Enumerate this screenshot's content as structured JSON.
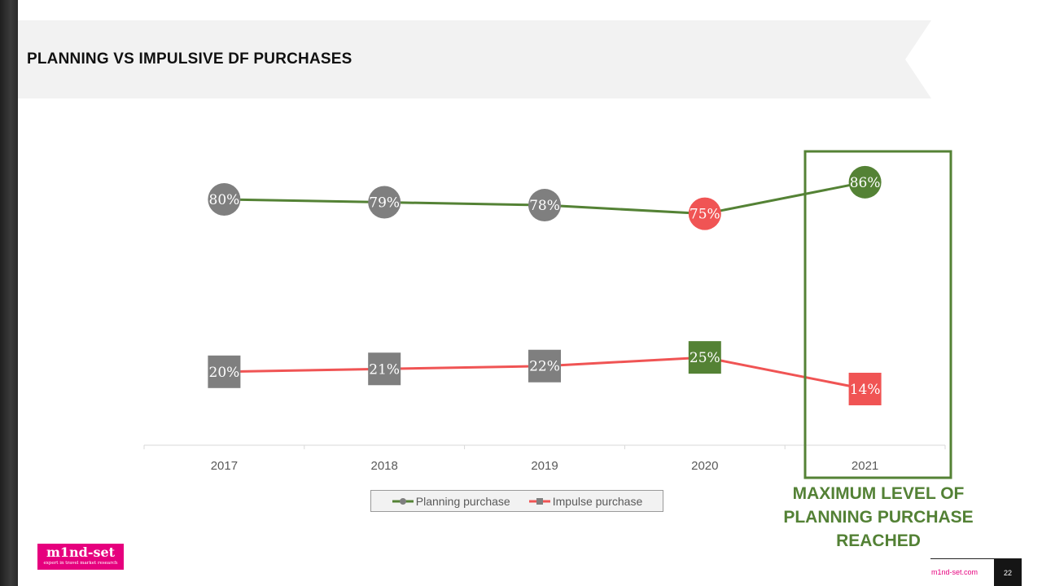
{
  "slide": {
    "title": "PLANNING VS IMPULSIVE DF PURCHASES",
    "callout": "MAXIMUM LEVEL OF PLANNING PURCHASE REACHED",
    "logo_text": "m1nd-set",
    "logo_tagline": "expert in travel market research",
    "website": "m1nd-set.com",
    "page_number": "22"
  },
  "colors": {
    "planning_line": "#548235",
    "impulse_line": "#f05454",
    "neutral_marker": "#7f7f7f",
    "highlight_green": "#538135",
    "highlight_red": "#f05454",
    "brand_pink": "#e6007e"
  },
  "chart_data": {
    "type": "line",
    "categories": [
      "2017",
      "2018",
      "2019",
      "2020",
      "2021"
    ],
    "series": [
      {
        "name": "Planning purchase",
        "marker": "circle",
        "values": [
          80,
          79,
          78,
          75,
          86
        ],
        "labels": [
          "80%",
          "79%",
          "78%",
          "75%",
          "86%"
        ],
        "marker_colors": [
          "#7f7f7f",
          "#7f7f7f",
          "#7f7f7f",
          "#f05454",
          "#548235"
        ]
      },
      {
        "name": "Impulse purchase",
        "marker": "square",
        "values": [
          20,
          21,
          22,
          25,
          14
        ],
        "labels": [
          "20%",
          "21%",
          "22%",
          "25%",
          "14%"
        ],
        "marker_colors": [
          "#7f7f7f",
          "#7f7f7f",
          "#7f7f7f",
          "#548235",
          "#f05454"
        ]
      }
    ],
    "highlight_category": "2021",
    "legend_position": "bottom",
    "grid": false
  }
}
